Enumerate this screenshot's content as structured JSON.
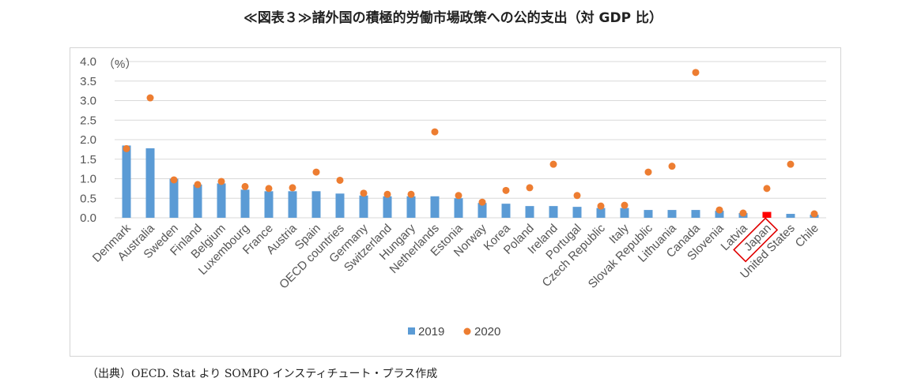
{
  "title": "≪図表３≫諸外国の積極的労働市場政策への公的支出（対 GDP 比）",
  "source": "（出典）OECD. Stat より SOMPO インスティチュート・プラス作成",
  "colors": {
    "bar": "#5b9bd5",
    "bar_highlight": "#ff0000",
    "dot": "#ed7d31",
    "highlight_box": "#e00000",
    "grid": "#d9d9d9"
  },
  "chart_data": {
    "type": "bar",
    "unit_label": "（%）",
    "ylim": [
      0,
      4.0
    ],
    "yticks": [
      "0.0",
      "0.5",
      "1.0",
      "1.5",
      "2.0",
      "2.5",
      "3.0",
      "3.5",
      "4.0"
    ],
    "grid": true,
    "legend_position": "bottom",
    "highlight_category": "Japan",
    "categories": [
      "Denmark",
      "Australia",
      "Sweden",
      "Finland",
      "Belgium",
      "Luxembourg",
      "France",
      "Austria",
      "Spain",
      "OECD countries",
      "Germany",
      "Switzerland",
      "Hungary",
      "Netherlands",
      "Estonia",
      "Norway",
      "Korea",
      "Poland",
      "Ireland",
      "Portugal",
      "Czech Republic",
      "Italy",
      "Slovak Republic",
      "Lithuania",
      "Canada",
      "Slovenia",
      "Latvia",
      "Japan",
      "United States",
      "Chile"
    ],
    "series": [
      {
        "name": "2019",
        "kind": "bar",
        "values": [
          1.85,
          1.78,
          1.0,
          0.85,
          0.88,
          0.72,
          0.68,
          0.68,
          0.68,
          0.62,
          0.57,
          0.55,
          0.55,
          0.55,
          0.5,
          0.38,
          0.36,
          0.3,
          0.3,
          0.28,
          0.25,
          0.25,
          0.2,
          0.2,
          0.2,
          0.18,
          0.12,
          0.15,
          0.1,
          0.08
        ]
      },
      {
        "name": "2020",
        "kind": "dot",
        "values": [
          1.77,
          3.07,
          0.97,
          0.85,
          0.93,
          0.8,
          0.75,
          0.77,
          1.17,
          0.96,
          0.63,
          0.6,
          0.6,
          2.2,
          0.57,
          0.4,
          0.7,
          0.77,
          1.37,
          0.57,
          0.3,
          0.32,
          1.17,
          1.32,
          3.72,
          0.2,
          0.12,
          0.75,
          1.37,
          0.1
        ]
      }
    ]
  }
}
